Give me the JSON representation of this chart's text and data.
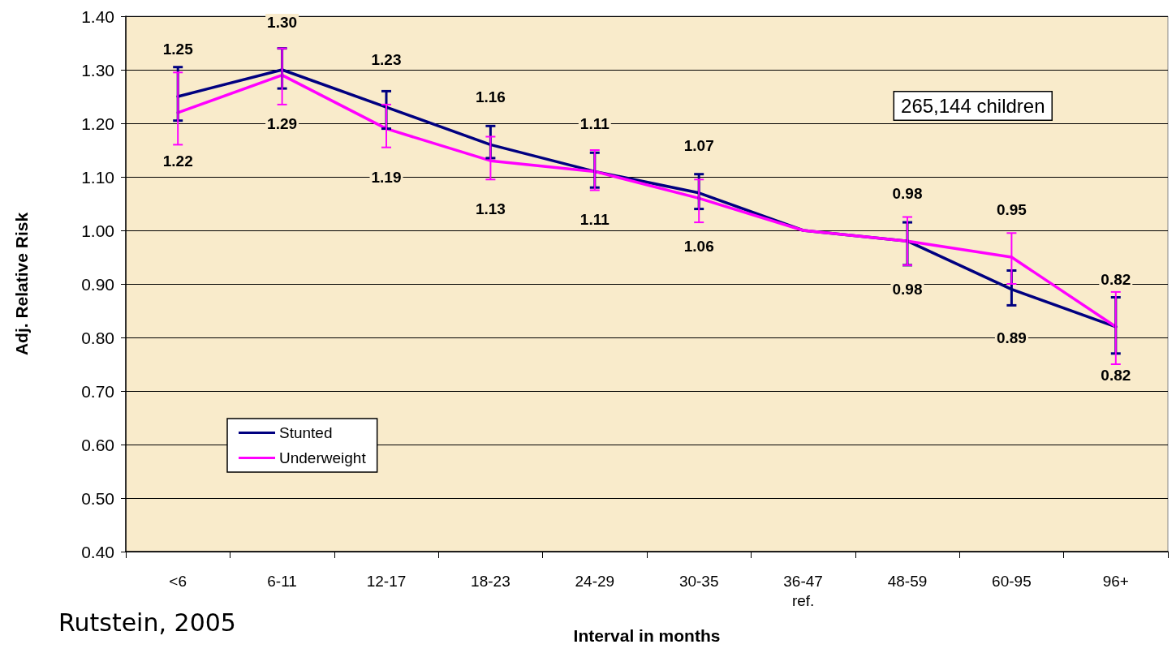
{
  "chart_data": {
    "type": "line",
    "xlabel": "Interval in months",
    "ylabel": "Adj. Relative Risk",
    "categories": [
      "<6",
      "6-11",
      "12-17",
      "18-23",
      "24-29",
      "30-35",
      "36-47\nref.",
      "48-59",
      "60-95",
      "96+"
    ],
    "series": [
      {
        "name": "Stunted",
        "color": "#000080",
        "values": [
          1.25,
          1.3,
          1.23,
          1.16,
          1.11,
          1.07,
          1.0,
          0.98,
          0.89,
          0.82
        ],
        "value_labels": [
          "1.25",
          "1.30",
          "1.23",
          "1.16",
          "1.11",
          "1.07",
          null,
          "0.98",
          "0.89",
          "0.82"
        ],
        "errors": [
          [
            1.205,
            1.305
          ],
          [
            1.265,
            1.34
          ],
          [
            1.19,
            1.26
          ],
          [
            1.135,
            1.195
          ],
          [
            1.08,
            1.145
          ],
          [
            1.04,
            1.105
          ],
          null,
          [
            0.935,
            1.015
          ],
          [
            0.86,
            0.925
          ],
          [
            0.77,
            0.875
          ]
        ]
      },
      {
        "name": "Underweight",
        "color": "#ff00ff",
        "values": [
          1.22,
          1.29,
          1.19,
          1.13,
          1.11,
          1.06,
          1.0,
          0.98,
          0.95,
          0.82
        ],
        "value_labels": [
          "1.22",
          "1.29",
          "1.19",
          "1.13",
          "1.11",
          "1.06",
          null,
          "0.98",
          "0.95",
          "0.82"
        ],
        "errors": [
          [
            1.16,
            1.295
          ],
          [
            1.235,
            1.34
          ],
          [
            1.155,
            1.235
          ],
          [
            1.095,
            1.175
          ],
          [
            1.075,
            1.15
          ],
          [
            1.015,
            1.095
          ],
          null,
          [
            0.935,
            1.025
          ],
          [
            0.9,
            0.995
          ],
          [
            0.75,
            0.885
          ]
        ]
      }
    ],
    "ylim": [
      0.4,
      1.4
    ],
    "yticks": [
      {
        "value": 0.4,
        "label": "0.40"
      },
      {
        "value": 0.5,
        "label": "0.50"
      },
      {
        "value": 0.6,
        "label": "0.60"
      },
      {
        "value": 0.7,
        "label": "0.70"
      },
      {
        "value": 0.8,
        "label": "0.80"
      },
      {
        "value": 0.9,
        "label": "0.90"
      },
      {
        "value": 1.0,
        "label": "1.00"
      },
      {
        "value": 1.1,
        "label": "1.10"
      },
      {
        "value": 1.2,
        "label": "1.20"
      },
      {
        "value": 1.3,
        "label": "1.30"
      },
      {
        "value": 1.4,
        "label": "1.40"
      }
    ],
    "grid": "y",
    "legend": "bottom left",
    "marker": "none",
    "line_style": "solid",
    "annotations": [
      "265,144 children",
      "Rutstein, 2005"
    ]
  }
}
